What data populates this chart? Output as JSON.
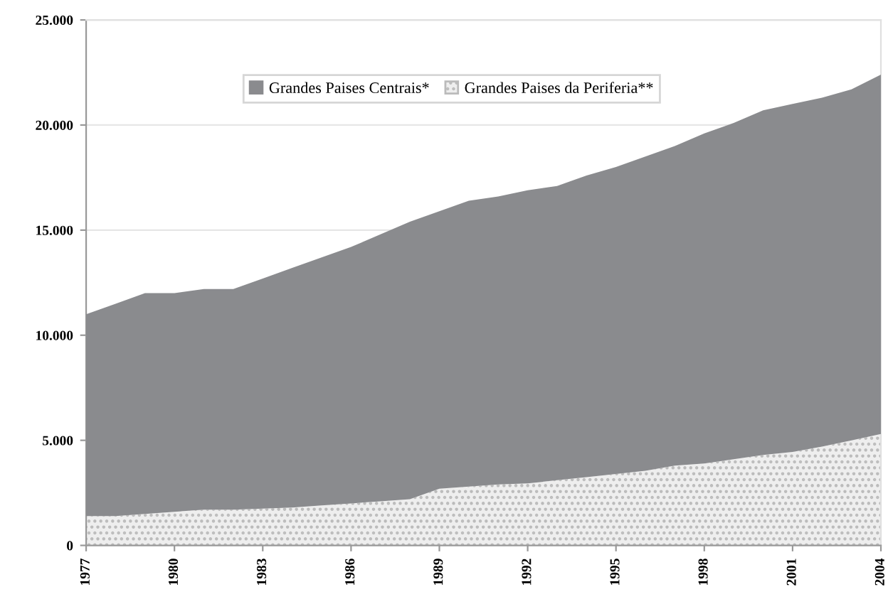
{
  "chart_data": {
    "type": "area",
    "stacked": true,
    "x": [
      1977,
      1978,
      1979,
      1980,
      1981,
      1982,
      1983,
      1984,
      1985,
      1986,
      1987,
      1988,
      1989,
      1990,
      1991,
      1992,
      1993,
      1994,
      1995,
      1996,
      1997,
      1998,
      1999,
      2000,
      2001,
      2002,
      2003,
      2004
    ],
    "series": [
      {
        "name": "Grandes Paises da Periferia**",
        "color": "#eeeeee",
        "values": [
          1400,
          1400,
          1500,
          1600,
          1700,
          1700,
          1750,
          1800,
          1900,
          2000,
          2100,
          2200,
          2700,
          2800,
          2900,
          2950,
          3100,
          3250,
          3400,
          3550,
          3800,
          3900,
          4100,
          4300,
          4450,
          4700,
          5000,
          5300
        ]
      },
      {
        "name": "Grandes Paises Centrais*",
        "color": "#8a8b8e",
        "values": [
          9600,
          10100,
          10500,
          10400,
          10500,
          10500,
          10950,
          11400,
          11800,
          12200,
          12700,
          13200,
          13200,
          13600,
          13700,
          13950,
          14000,
          14350,
          14600,
          14950,
          15200,
          15700,
          16000,
          16400,
          16550,
          16600,
          16700,
          17100
        ]
      }
    ],
    "xlim": [
      1977,
      2004
    ],
    "xticks": [
      1977,
      1980,
      1983,
      1986,
      1989,
      1992,
      1995,
      1998,
      2001,
      2004
    ],
    "ylim": [
      0,
      25000
    ],
    "yticks": [
      {
        "value": 0,
        "label": "0"
      },
      {
        "value": 5000,
        "label": "5.000"
      },
      {
        "value": 10000,
        "label": "10.000"
      },
      {
        "value": 15000,
        "label": "15.000"
      },
      {
        "value": 20000,
        "label": "20.000"
      },
      {
        "value": 25000,
        "label": "25.000"
      }
    ],
    "grid": "y",
    "legend": "top"
  }
}
